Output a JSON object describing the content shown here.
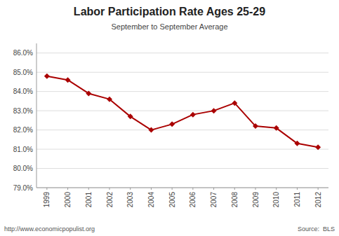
{
  "chart_data": {
    "type": "line",
    "title": "Labor Participation Rate Ages 25-29",
    "subtitle": "September to September Average",
    "annotations": [
      "http://www.economicpopulist.org",
      "Source:  BLS"
    ],
    "x": [
      1999,
      2000,
      2001,
      2002,
      2003,
      2004,
      2005,
      2006,
      2007,
      2008,
      2009,
      2010,
      2011,
      2012
    ],
    "values": [
      84.8,
      84.6,
      83.9,
      83.6,
      82.7,
      82.0,
      82.3,
      82.8,
      83.0,
      83.4,
      82.2,
      82.1,
      81.3,
      81.1
    ],
    "xlim": [
      1998.5,
      2012.5
    ],
    "xticks": [
      1999,
      2000,
      2001,
      2002,
      2003,
      2004,
      2005,
      2006,
      2007,
      2008,
      2009,
      2010,
      2011,
      2012
    ],
    "ylim": [
      79.0,
      86.5
    ],
    "yticks": [
      {
        "value": 79.0,
        "label": "79.0%"
      },
      {
        "value": 80.0,
        "label": "80.0%"
      },
      {
        "value": 81.0,
        "label": "81.0%"
      },
      {
        "value": 82.0,
        "label": "82.0%"
      },
      {
        "value": 83.0,
        "label": "83.0%"
      },
      {
        "value": 84.0,
        "label": "84.0%"
      },
      {
        "value": 85.0,
        "label": "85.0%"
      },
      {
        "value": 86.0,
        "label": "86.0%"
      }
    ],
    "color": "#aa0000",
    "marker": "diamond",
    "grid": true
  }
}
